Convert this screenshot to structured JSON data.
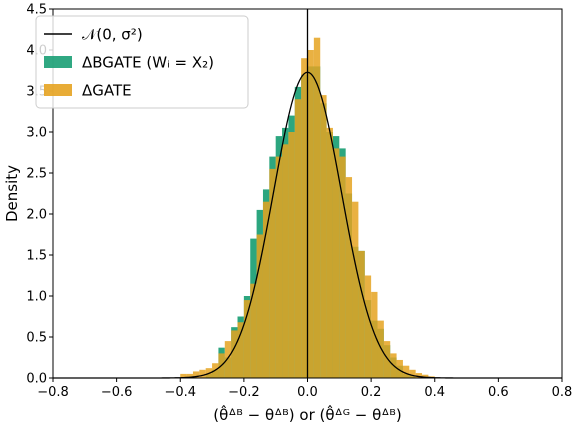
{
  "chart_data": {
    "type": "histogram",
    "xlabel": "(θ̂ᐞᴮ − θᐞᴮ) or (θ̂ᐞᴳ − θᐞᴮ)",
    "ylabel": "Density",
    "xlim": [
      -0.8,
      0.8
    ],
    "ylim": [
      0.0,
      4.5
    ],
    "xticks": [
      -0.8,
      -0.6,
      -0.4,
      -0.2,
      0.0,
      0.2,
      0.4,
      0.6,
      0.8
    ],
    "xtick_labels": [
      "−0.8",
      "−0.6",
      "−0.4",
      "−0.2",
      "0.0",
      "0.2",
      "0.4",
      "0.6",
      "0.8"
    ],
    "yticks": [
      0.0,
      0.5,
      1.0,
      1.5,
      2.0,
      2.5,
      3.0,
      3.5,
      4.0,
      4.5
    ],
    "ytick_labels": [
      "0.0",
      "0.5",
      "1.0",
      "1.5",
      "2.0",
      "2.5",
      "3.0",
      "3.5",
      "4.0",
      "4.5"
    ],
    "legend_position": "top-left",
    "vline_x": 0.0,
    "bin_width": 0.02,
    "series": [
      {
        "name": "ΔBGATE (Wᵢ = X₂)",
        "kind": "histogram",
        "color": "#1a9e74",
        "bin_starts": [
          -0.32,
          -0.3,
          -0.28,
          -0.26,
          -0.24,
          -0.22,
          -0.2,
          -0.18,
          -0.16,
          -0.14,
          -0.12,
          -0.1,
          -0.08,
          -0.06,
          -0.04,
          -0.02,
          0.0,
          0.02,
          0.04,
          0.06,
          0.08,
          0.1,
          0.12,
          0.14,
          0.16,
          0.18,
          0.2,
          0.22,
          0.24,
          0.26,
          0.28,
          0.3,
          0.32
        ],
        "densities": [
          0.05,
          0.1,
          0.37,
          0.25,
          0.62,
          0.75,
          1.0,
          1.7,
          2.05,
          2.3,
          2.7,
          2.95,
          3.05,
          3.2,
          3.55,
          3.7,
          3.8,
          3.8,
          3.35,
          3.0,
          2.95,
          2.8,
          2.25,
          1.6,
          1.55,
          0.95,
          0.7,
          0.6,
          0.4,
          0.25,
          0.15,
          0.05,
          0.03
        ]
      },
      {
        "name": "ΔGATE",
        "kind": "histogram",
        "color": "#e5a321",
        "bin_starts": [
          -0.4,
          -0.38,
          -0.36,
          -0.34,
          -0.32,
          -0.3,
          -0.28,
          -0.26,
          -0.24,
          -0.22,
          -0.2,
          -0.18,
          -0.16,
          -0.14,
          -0.12,
          -0.1,
          -0.08,
          -0.06,
          -0.04,
          -0.02,
          0.0,
          0.02,
          0.04,
          0.06,
          0.08,
          0.1,
          0.12,
          0.14,
          0.16,
          0.18,
          0.2,
          0.22,
          0.24,
          0.26,
          0.28,
          0.3,
          0.32,
          0.34,
          0.36,
          0.38
        ],
        "densities": [
          0.05,
          0.05,
          0.08,
          0.1,
          0.12,
          0.18,
          0.3,
          0.45,
          0.58,
          0.68,
          0.95,
          1.15,
          1.75,
          2.15,
          2.55,
          2.7,
          2.85,
          3.0,
          3.4,
          3.9,
          4.0,
          4.15,
          3.45,
          3.05,
          2.8,
          2.7,
          2.45,
          2.15,
          1.55,
          1.25,
          1.05,
          0.7,
          0.45,
          0.3,
          0.22,
          0.15,
          0.1,
          0.06,
          0.04,
          0.02
        ]
      },
      {
        "name": "𝒩(0, σ²)",
        "kind": "normal-pdf",
        "color": "#000000",
        "mean": 0.0,
        "sigma": 0.107
      }
    ]
  }
}
